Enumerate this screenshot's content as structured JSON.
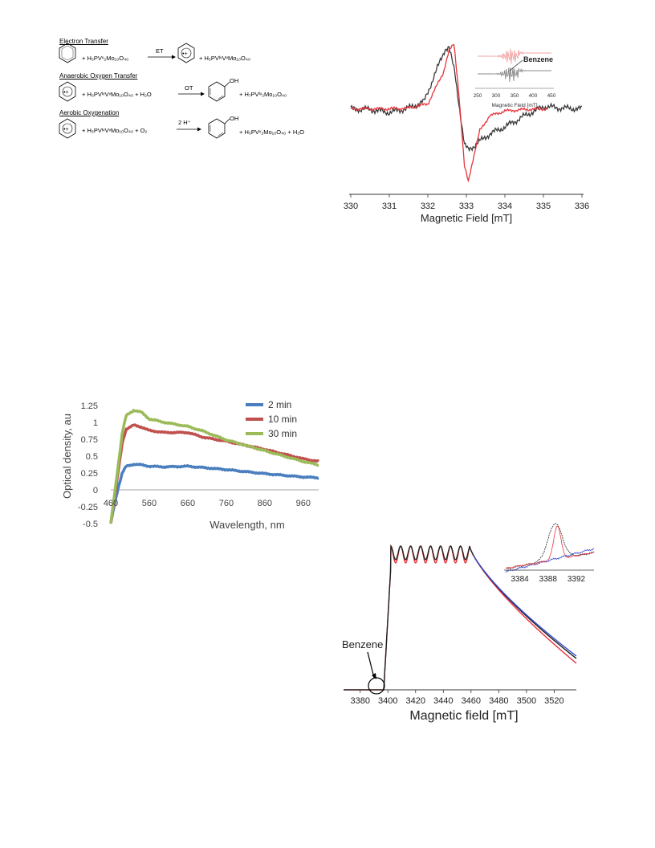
{
  "scheme": {
    "sections": [
      {
        "title": "Electron Transfer",
        "plus1": "+ H₅PVᵛ₂Mo₁₀O₄₀",
        "arrow": "ET",
        "plus2": "+ H₅PVᴵᵛVᵛMo₁₀O₄₀"
      },
      {
        "title": "Anaerobic Oxygen Transfer",
        "plus1": "+ H₅PVᴵᵛVᵛMo₁₀O₄₀ + H₂O",
        "arrow": "OT",
        "plus2": "+ H₇PVᴵᵛ₂Mo₁₀O₄₀",
        "oh": "OH"
      },
      {
        "title": "Aerobic Oxygenation",
        "plus1": "+ H₅PVᴵᵛVᵛMo₁₀O₄₀ + O₂",
        "arrow": "2 H⁺",
        "plus2": "+ H₅PVᵛ₂Mo₁₀O₄₀ + H₂O",
        "oh": "OH"
      }
    ]
  },
  "chart_data": [
    {
      "type": "line",
      "xlabel": "Magnetic Field [mT]",
      "ylabel": "",
      "xlim": [
        330,
        336
      ],
      "xticks": [
        330,
        331,
        332,
        333,
        334,
        335,
        336
      ],
      "series": [
        {
          "color": "#3a3a3a",
          "x": [
            330,
            330.5,
            331,
            331.5,
            331.9,
            332.2,
            332.45,
            332.55,
            332.7,
            332.85,
            332.95,
            333.05,
            333.3,
            333.6,
            334,
            334.5,
            335,
            335.5,
            336
          ],
          "y": [
            0.05,
            0.04,
            0.0,
            0.06,
            0.15,
            0.55,
            0.88,
            0.9,
            0.55,
            -0.05,
            -0.45,
            -0.52,
            -0.42,
            -0.3,
            -0.2,
            -0.05,
            0.08,
            0.06,
            0.05
          ]
        },
        {
          "color": "#e8353b",
          "x": [
            330,
            331,
            331.5,
            332,
            332.4,
            332.55,
            332.68,
            332.8,
            332.95,
            333.05,
            333.15,
            333.35,
            333.6,
            334,
            334.5,
            335
          ],
          "y": [
            0.05,
            0.05,
            0.06,
            0.12,
            0.55,
            0.85,
            0.95,
            0.3,
            -0.75,
            -0.95,
            -0.7,
            -0.25,
            -0.05,
            0.02,
            0.04,
            0.05
          ]
        }
      ],
      "inset": {
        "xlabel": "Magnetic Field [mT]",
        "xticks": [
          250,
          300,
          350,
          400,
          450
        ],
        "annotation": "Benzene"
      }
    },
    {
      "type": "line",
      "xlabel": "Wavelength, nm",
      "ylabel": "Optical density, au",
      "xlim": [
        460,
        1000
      ],
      "ylim": [
        -0.5,
        1.25
      ],
      "xticks": [
        460,
        560,
        660,
        760,
        860,
        960
      ],
      "yticks": [
        -0.5,
        -0.25,
        0,
        0.25,
        0.5,
        0.75,
        1,
        1.25
      ],
      "legend_position": "top-right",
      "series": [
        {
          "name": "2 min",
          "color": "#4a7ebf",
          "x": [
            460,
            470,
            480,
            490,
            500,
            520,
            540,
            560,
            600,
            660,
            700,
            760,
            860,
            960,
            1000
          ],
          "y": [
            -0.5,
            -0.2,
            0.05,
            0.25,
            0.35,
            0.38,
            0.37,
            0.35,
            0.34,
            0.35,
            0.33,
            0.3,
            0.24,
            0.19,
            0.18
          ]
        },
        {
          "name": "10 min",
          "color": "#c0504d",
          "x": [
            460,
            470,
            480,
            490,
            500,
            520,
            540,
            560,
            600,
            660,
            700,
            760,
            860,
            960,
            1000
          ],
          "y": [
            -0.5,
            -0.1,
            0.3,
            0.7,
            0.9,
            0.96,
            0.93,
            0.88,
            0.85,
            0.85,
            0.78,
            0.72,
            0.6,
            0.46,
            0.42
          ]
        },
        {
          "name": "30 min",
          "color": "#9bbb59",
          "x": [
            460,
            470,
            480,
            490,
            500,
            520,
            540,
            560,
            600,
            660,
            700,
            760,
            860,
            960,
            1000
          ],
          "y": [
            -0.5,
            -0.05,
            0.4,
            0.85,
            1.1,
            1.18,
            1.15,
            1.05,
            1.0,
            0.94,
            0.87,
            0.74,
            0.58,
            0.42,
            0.37
          ]
        }
      ]
    },
    {
      "type": "line",
      "xlabel": "Magnetic field [mT]",
      "ylabel": "",
      "xlim": [
        3368,
        3536
      ],
      "xticks": [
        3380,
        3400,
        3420,
        3440,
        3460,
        3480,
        3500,
        3520
      ],
      "annotation": "Benzene",
      "series": [
        {
          "color": "#e8353b"
        },
        {
          "color": "#222222"
        },
        {
          "color": "#3a4bd6"
        }
      ],
      "inset": {
        "xticks": [
          3384,
          3388,
          3392
        ]
      }
    }
  ]
}
